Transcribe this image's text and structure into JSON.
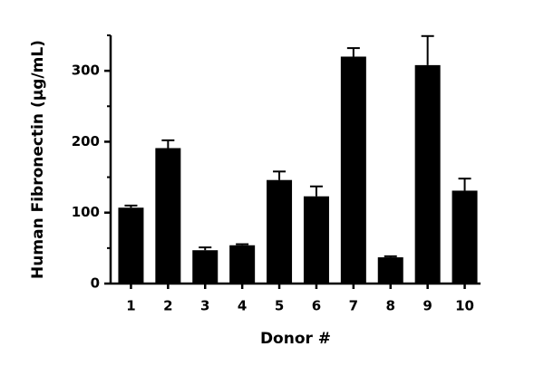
{
  "chart_data": {
    "type": "bar",
    "xlabel": "Donor #",
    "ylabel": "Human Fibronectin (µg/mL)",
    "categories": [
      "1",
      "2",
      "3",
      "4",
      "5",
      "6",
      "7",
      "8",
      "9",
      "10"
    ],
    "values": [
      107,
      191,
      47,
      54,
      146,
      123,
      320,
      37,
      308,
      131
    ],
    "errors": [
      3,
      11,
      4,
      1.5,
      12,
      14,
      12,
      1.5,
      41,
      17
    ],
    "color": "#000000",
    "ylim": [
      0,
      350
    ],
    "yticks": [
      0,
      100,
      200,
      300
    ],
    "minor_yticks": [
      50,
      150,
      250,
      350
    ],
    "grid": false
  }
}
